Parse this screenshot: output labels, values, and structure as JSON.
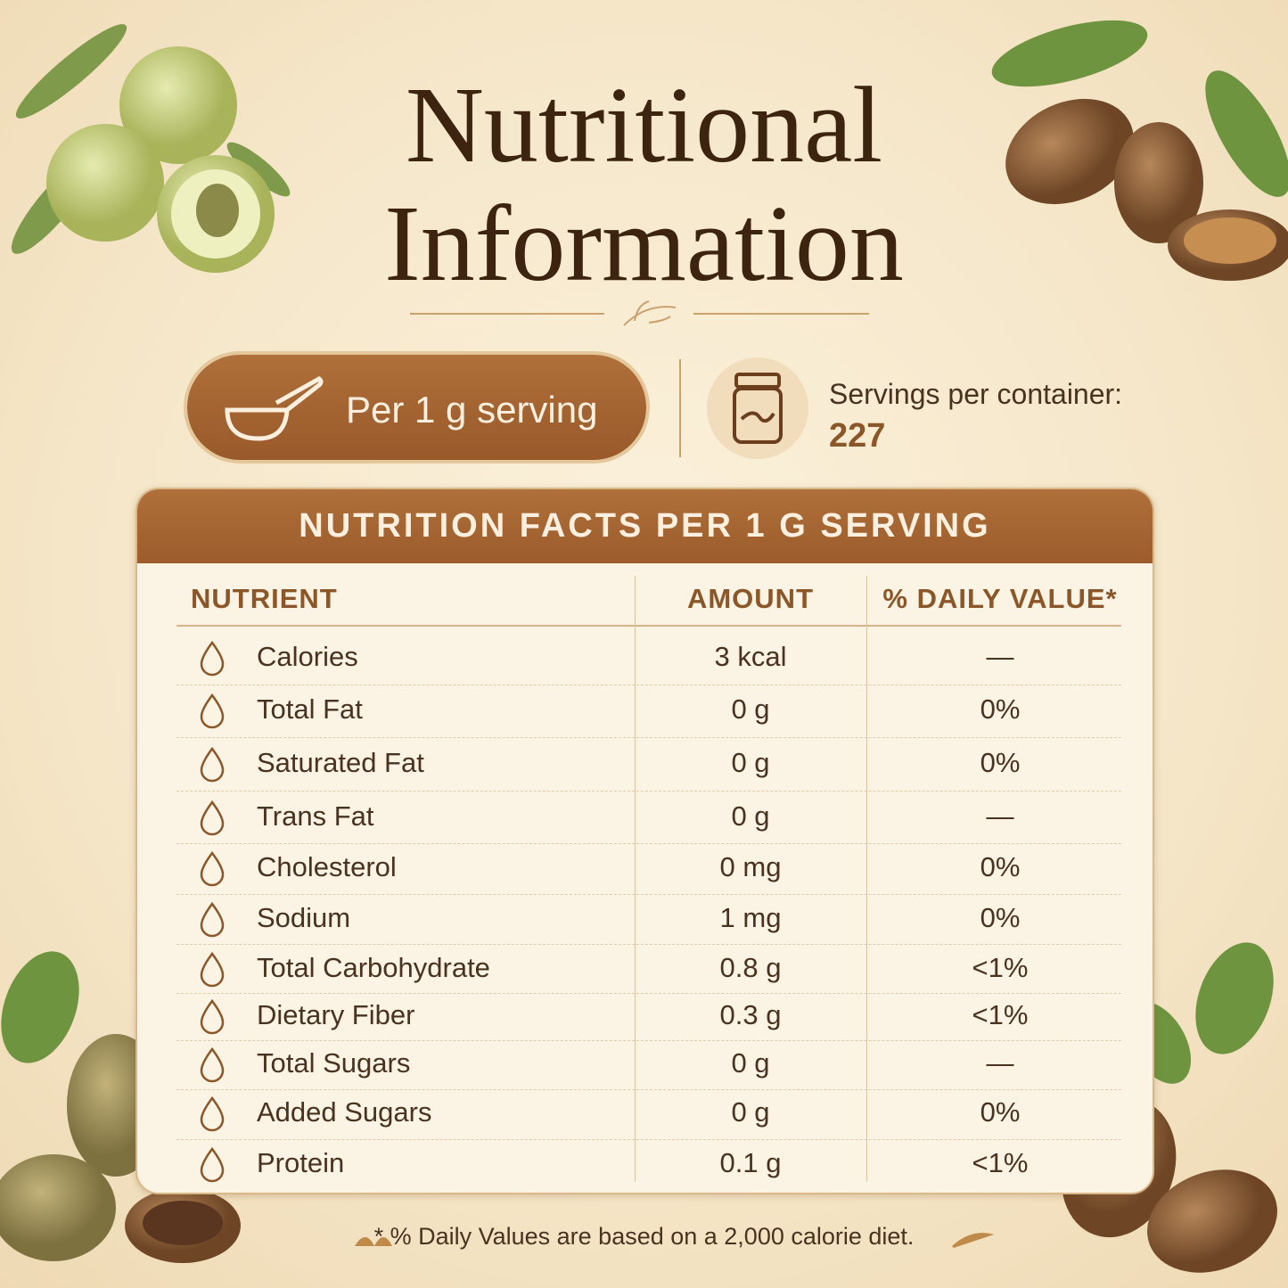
{
  "header": {
    "title_lines": [
      "Nutritional",
      "Information"
    ]
  },
  "serving": {
    "label": "Per 1 g serving"
  },
  "servings_per_container": {
    "label": "Servings per container:",
    "value": "227"
  },
  "table": {
    "title": "NUTRITION FACTS PER 1 G SERVING",
    "columns": [
      "NUTRIENT",
      "AMOUNT",
      "% DAILY VALUE*"
    ],
    "rows": [
      [
        "Calories",
        "3 kcal",
        "—"
      ],
      [
        "Total Fat",
        "0 g",
        "0%"
      ],
      [
        "Saturated Fat",
        "0 g",
        "0%"
      ],
      [
        "Trans Fat",
        "0 g",
        "—"
      ],
      [
        "Cholesterol",
        "0 mg",
        "0%"
      ],
      [
        "Sodium",
        "1 mg",
        "0%"
      ],
      [
        "Total Carbohydrate",
        "0.8 g",
        "<1%"
      ],
      [
        "Dietary Fiber",
        "0.3 g",
        "<1%"
      ],
      [
        "Total Sugars",
        "0 g",
        "—"
      ],
      [
        "Added Sugars",
        "0 g",
        "0%"
      ],
      [
        "Protein",
        "0.1 g",
        "<1%"
      ]
    ]
  },
  "footnote": "* % Daily Values are based on a 2,000 calorie diet."
}
